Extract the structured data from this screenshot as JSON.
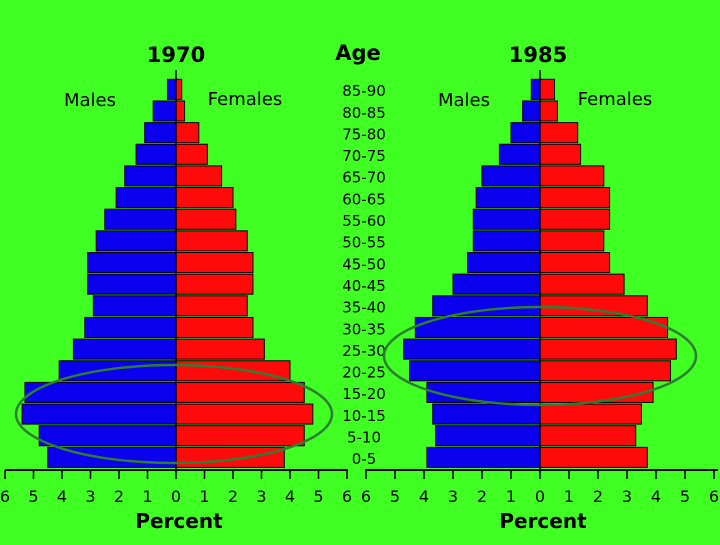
{
  "colors": {
    "background": "#40ff22",
    "male": "#0a00ee",
    "female": "#ff0a0a",
    "ellipse": "#2e7d32"
  },
  "age_heading": "Age",
  "chart_data": [
    {
      "type": "bar",
      "subtype": "population-pyramid",
      "title": "1970",
      "xlabel": "Percent",
      "ylabel": "Age",
      "categories": [
        "0-5",
        "5-10",
        "10-15",
        "15-20",
        "20-25",
        "25-30",
        "30-35",
        "35-40",
        "40-45",
        "45-50",
        "50-55",
        "55-60",
        "60-65",
        "65-70",
        "70-75",
        "75-80",
        "80-85",
        "85-90"
      ],
      "series": [
        {
          "name": "Males",
          "values": [
            4.5,
            4.8,
            5.4,
            5.3,
            4.1,
            3.6,
            3.2,
            2.9,
            3.1,
            3.1,
            2.8,
            2.5,
            2.1,
            1.8,
            1.4,
            1.1,
            0.8,
            0.3
          ]
        },
        {
          "name": "Females",
          "values": [
            3.8,
            4.5,
            4.8,
            4.5,
            4.0,
            3.1,
            2.7,
            2.5,
            2.7,
            2.7,
            2.5,
            2.1,
            2.0,
            1.6,
            1.1,
            0.8,
            0.3,
            0.2
          ]
        }
      ],
      "xlim": [
        -6,
        6
      ],
      "x_ticks": [
        "6",
        "5",
        "4",
        "3",
        "2",
        "1",
        "0",
        "1",
        "2",
        "3",
        "4",
        "5",
        "6"
      ],
      "legend": "labels above each side"
    },
    {
      "type": "bar",
      "subtype": "population-pyramid",
      "title": "1985",
      "xlabel": "Percent",
      "ylabel": "Age",
      "categories": [
        "0-5",
        "5-10",
        "10-15",
        "15-20",
        "20-25",
        "25-30",
        "30-35",
        "35-40",
        "40-45",
        "45-50",
        "50-55",
        "55-60",
        "60-65",
        "65-70",
        "70-75",
        "75-80",
        "80-85",
        "85-90"
      ],
      "series": [
        {
          "name": "Males",
          "values": [
            3.9,
            3.6,
            3.7,
            3.9,
            4.5,
            4.7,
            4.3,
            3.7,
            3.0,
            2.5,
            2.3,
            2.3,
            2.2,
            2.0,
            1.4,
            1.0,
            0.6,
            0.3
          ]
        },
        {
          "name": "Females",
          "values": [
            3.7,
            3.3,
            3.5,
            3.9,
            4.5,
            4.7,
            4.4,
            3.7,
            2.9,
            2.4,
            2.2,
            2.4,
            2.4,
            2.2,
            1.4,
            1.3,
            0.6,
            0.5
          ]
        }
      ],
      "xlim": [
        -6,
        6
      ],
      "x_ticks": [
        "6",
        "5",
        "4",
        "3",
        "2",
        "1",
        "0",
        "1",
        "2",
        "3",
        "4",
        "5",
        "6"
      ],
      "legend": "labels above each side"
    }
  ]
}
